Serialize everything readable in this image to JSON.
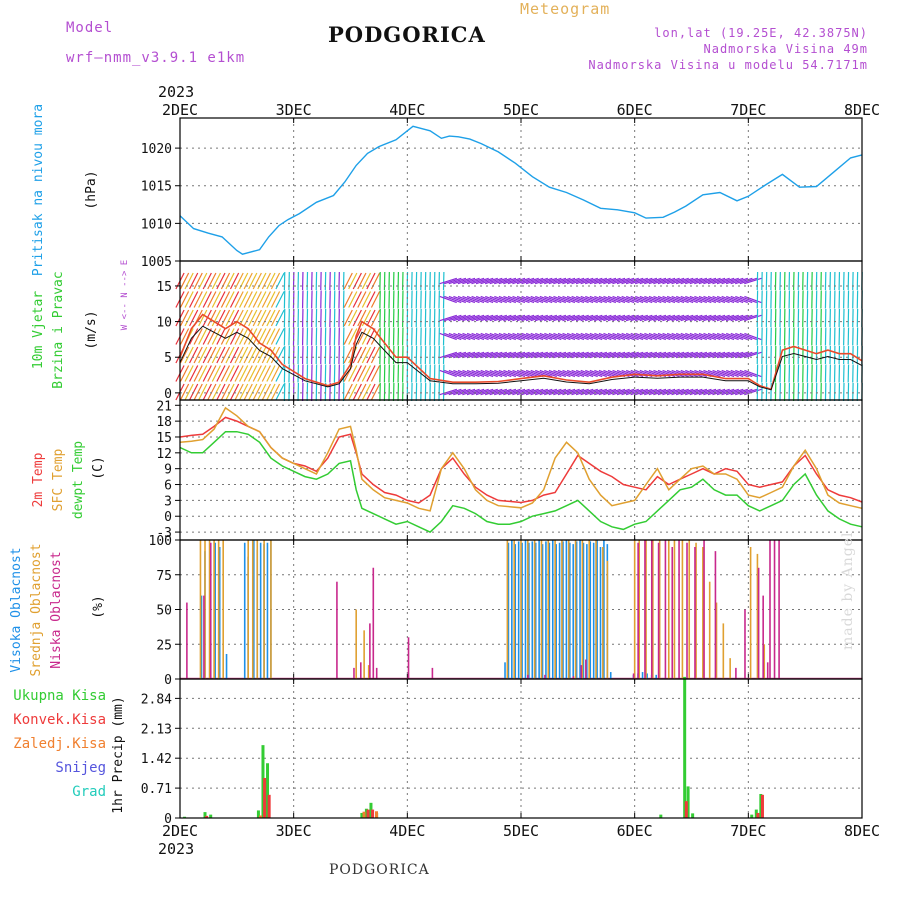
{
  "header": {
    "model_label": "Model",
    "model_name": "wrf—nmm_v3.9.1  e1km",
    "title": "PODGORICA",
    "meteogram_label": "Meteogram",
    "coords": "lon,lat (19.25E, 42.3875N)",
    "elevation": "Nadmorska Visina 49m",
    "model_elevation": "Nadmorska Visina u modelu 54.7171m"
  },
  "footer": {
    "location": "PODGORICA",
    "credit": "made by Angel"
  },
  "colors": {
    "pressure": "#1ea0e8",
    "temp2m": "#ee3b3b",
    "sfc": "#e0a030",
    "dewpt": "#33cc33",
    "high_cloud": "#1e90e8",
    "mid_cloud": "#e0a030",
    "low_cloud": "#c8288c",
    "total_precip": "#33cc33",
    "conv_precip": "#ee3b3b",
    "frz_precip": "#f08030",
    "snow": "#5555dd",
    "hail": "#22ccbb",
    "title_purple": "#b44fd1"
  },
  "chart_data": [
    {
      "type": "line",
      "name": "pressure",
      "ylabel_1": "Pritisak na nivou mora",
      "ylabel_2": "(hPa)",
      "ylim": [
        1005,
        1024
      ],
      "yticks": [
        "1005",
        "1010",
        "1015",
        "1020"
      ],
      "ytick_values": [
        1005,
        1010,
        1015,
        1020
      ],
      "grid": true,
      "time_axis": {
        "start_year": "2023",
        "ticks": [
          "2DEC",
          "3DEC",
          "4DEC",
          "5DEC",
          "6DEC",
          "7DEC",
          "8DEC"
        ],
        "range_days": [
          0,
          6
        ]
      },
      "x": [
        0,
        0.12,
        0.25,
        0.37,
        0.5,
        0.55,
        0.6,
        0.7,
        0.78,
        0.87,
        0.95,
        1.05,
        1.2,
        1.35,
        1.45,
        1.55,
        1.65,
        1.75,
        1.9,
        2.05,
        2.2,
        2.3,
        2.37,
        2.45,
        2.55,
        2.65,
        2.8,
        2.95,
        3.1,
        3.25,
        3.4,
        3.55,
        3.7,
        3.85,
        4.0,
        4.1,
        4.25,
        4.35,
        4.45,
        4.6,
        4.75,
        4.9,
        5.0,
        5.15,
        5.3,
        5.45,
        5.6,
        5.75,
        5.9,
        6.0
      ],
      "values": [
        1011,
        1009.3,
        1008.7,
        1008.2,
        1006.4,
        1005.9,
        1006.1,
        1006.5,
        1008.2,
        1009.7,
        1010.5,
        1011.3,
        1012.8,
        1013.7,
        1015.5,
        1017.7,
        1019.3,
        1020.2,
        1021.1,
        1022.9,
        1022.3,
        1021.3,
        1021.6,
        1021.5,
        1021.2,
        1020.6,
        1019.5,
        1018.0,
        1016.2,
        1014.8,
        1014.1,
        1013.1,
        1012.0,
        1011.8,
        1011.4,
        1010.7,
        1010.8,
        1011.5,
        1012.3,
        1013.8,
        1014.1,
        1013.0,
        1013.6,
        1015.1,
        1016.5,
        1014.8,
        1014.9,
        1016.8,
        1018.7,
        1019.1
      ]
    },
    {
      "type": "line",
      "name": "wind",
      "ylabel_1": "10m Vjetar",
      "ylabel_2": "Brzina i Pravac",
      "ylabel_3": "(m/s)",
      "compass": "W <-- N --> E",
      "ylim": [
        -1,
        18.5
      ],
      "yticks": [
        "0",
        "5",
        "10",
        "15"
      ],
      "ytick_values": [
        0,
        5,
        10,
        15
      ],
      "grid": true,
      "time_axis": {
        "ticks": [
          "2DEC",
          "3DEC",
          "4DEC",
          "5DEC",
          "6DEC",
          "7DEC",
          "8DEC"
        ],
        "range_days": [
          0,
          6
        ]
      },
      "series": [
        {
          "name": "wind speed",
          "x": [
            0,
            0.1,
            0.2,
            0.3,
            0.4,
            0.5,
            0.6,
            0.7,
            0.8,
            0.9,
            1.0,
            1.1,
            1.2,
            1.3,
            1.4,
            1.5,
            1.55,
            1.6,
            1.7,
            1.8,
            1.9,
            2.0,
            2.2,
            2.4,
            2.6,
            2.8,
            3.0,
            3.2,
            3.4,
            3.6,
            3.8,
            4.0,
            4.2,
            4.4,
            4.6,
            4.8,
            5.0,
            5.1,
            5.2,
            5.3,
            5.4,
            5.5,
            5.6,
            5.7,
            5.8,
            5.9,
            6.0
          ],
          "values": [
            5,
            9,
            11,
            10,
            9,
            10,
            9,
            7,
            6,
            4,
            3,
            2,
            1.5,
            1,
            1.5,
            4,
            8,
            10,
            9,
            7,
            5,
            5,
            2,
            1.5,
            1.5,
            1.6,
            2,
            2.4,
            1.8,
            1.5,
            2.2,
            2.6,
            2.4,
            2.6,
            2.6,
            2,
            2,
            1,
            0.5,
            6,
            6.5,
            6,
            5.5,
            6,
            5.5,
            5.5,
            4.5
          ]
        }
      ]
    },
    {
      "type": "line",
      "name": "temperature",
      "ylabel_1": "2m Temp",
      "ylabel_2": "SFC Temp",
      "ylabel_3": "dewpt Temp",
      "ylabel_4": "(C)",
      "ylim": [
        -4.5,
        22
      ],
      "yticks": [
        "-3",
        "0",
        "3",
        "6",
        "9",
        "12",
        "15",
        "18",
        "21"
      ],
      "ytick_values": [
        -3,
        0,
        3,
        6,
        9,
        12,
        15,
        18,
        21
      ],
      "grid": true,
      "time_axis": {
        "ticks": [
          "2DEC",
          "3DEC",
          "4DEC",
          "5DEC",
          "6DEC",
          "7DEC",
          "8DEC"
        ],
        "range_days": [
          0,
          6
        ]
      },
      "x": [
        0,
        0.1,
        0.2,
        0.3,
        0.4,
        0.5,
        0.6,
        0.7,
        0.8,
        0.9,
        1.0,
        1.1,
        1.2,
        1.3,
        1.4,
        1.5,
        1.55,
        1.6,
        1.7,
        1.8,
        1.9,
        2.0,
        2.1,
        2.2,
        2.3,
        2.4,
        2.5,
        2.6,
        2.7,
        2.8,
        2.9,
        3.0,
        3.1,
        3.2,
        3.3,
        3.4,
        3.5,
        3.6,
        3.7,
        3.8,
        3.9,
        4.0,
        4.1,
        4.2,
        4.3,
        4.4,
        4.5,
        4.6,
        4.7,
        4.8,
        4.9,
        5.0,
        5.1,
        5.2,
        5.3,
        5.4,
        5.5,
        5.6,
        5.7,
        5.8,
        5.9,
        6.0
      ],
      "series": [
        {
          "name": "2m Temp",
          "values": [
            15,
            15.3,
            15.5,
            17,
            18.7,
            18,
            17,
            16,
            13,
            11,
            10,
            9.5,
            8.5,
            11,
            15,
            15.5,
            12,
            8,
            6,
            4.5,
            4,
            3,
            2.5,
            4,
            9,
            11,
            8,
            5.5,
            4,
            3,
            2.8,
            2.6,
            3,
            4,
            4.5,
            8,
            11.5,
            10,
            8.5,
            7.5,
            6,
            5.5,
            5,
            7.5,
            6,
            7,
            8,
            9,
            8,
            9,
            8.5,
            6,
            5.5,
            6,
            6.5,
            9.5,
            11.5,
            8,
            5,
            4,
            3.5,
            2.7
          ]
        },
        {
          "name": "SFC Temp",
          "values": [
            14,
            14.2,
            14.5,
            16.5,
            20.5,
            19,
            17,
            16,
            13,
            11,
            10,
            9,
            8,
            12,
            16.5,
            17,
            12.5,
            7,
            5,
            3.5,
            3,
            2.5,
            1.5,
            1,
            9,
            12,
            9,
            5,
            3,
            2,
            1.8,
            1.6,
            2.5,
            5,
            11,
            14,
            12,
            7,
            4,
            2,
            2.5,
            3,
            6,
            9,
            5,
            7,
            9,
            9.5,
            8,
            8,
            7,
            4,
            3.5,
            4.5,
            5.5,
            9.5,
            12.5,
            9,
            4,
            2.5,
            2,
            1.5
          ]
        },
        {
          "name": "dewpt Temp",
          "values": [
            13,
            12,
            12,
            14,
            16,
            16,
            15.5,
            14,
            11,
            9.5,
            8.5,
            7.5,
            7,
            8,
            10,
            10.5,
            5,
            1.5,
            0.5,
            -0.5,
            -1.5,
            -1,
            -2,
            -3,
            -1,
            2,
            1.5,
            0.5,
            -1,
            -1.5,
            -1.5,
            -1,
            0,
            0.5,
            1,
            2,
            3,
            1,
            -1,
            -2,
            -2.5,
            -1.5,
            -1,
            1,
            3,
            5,
            5.5,
            7,
            5,
            4,
            4,
            2,
            1,
            2,
            3,
            6,
            8,
            4,
            1,
            -0.5,
            -1.5,
            -2
          ]
        }
      ]
    },
    {
      "type": "bar",
      "name": "clouds",
      "ylabel_1": "Visoka Oblacnost",
      "ylabel_2": "Srednja Oblacnost",
      "ylabel_3": "Niska Oblacnost",
      "ylabel_4": "(%)",
      "ylim": [
        0,
        100
      ],
      "yticks": [
        "0",
        "25",
        "50",
        "75",
        "100"
      ],
      "ytick_values": [
        0,
        25,
        50,
        75,
        100
      ],
      "grid": true,
      "time_axis": {
        "ticks": [
          "2DEC",
          "3DEC",
          "4DEC",
          "5DEC",
          "6DEC",
          "7DEC",
          "8DEC"
        ],
        "range_days": [
          0,
          6
        ]
      },
      "series": [
        {
          "name": "Visoka Oblacnost",
          "x": [
            0.2,
            0.23,
            0.28,
            0.32,
            0.36,
            0.42,
            0.58,
            0.61,
            0.66,
            0.69,
            0.72,
            0.75,
            0.78,
            0.81,
            2.87,
            2.9,
            2.93,
            2.96,
            2.99,
            3.02,
            3.05,
            3.08,
            3.11,
            3.14,
            3.17,
            3.2,
            3.23,
            3.26,
            3.29,
            3.32,
            3.35,
            3.38,
            3.41,
            3.44,
            3.47,
            3.5,
            3.53,
            3.56,
            3.59,
            3.62,
            3.65,
            3.68,
            3.71,
            3.74,
            3.77,
            3.8,
            4.0,
            4.04,
            4.08,
            4.12,
            4.16,
            4.2
          ],
          "values": [
            60,
            92,
            95,
            98,
            95,
            18,
            98,
            88,
            100,
            93,
            98,
            97,
            98,
            100,
            12,
            98,
            100,
            97,
            99,
            98,
            100,
            98,
            99,
            98,
            100,
            97,
            99,
            98,
            100,
            97,
            98,
            99,
            100,
            98,
            97,
            99,
            100,
            98,
            97,
            99,
            98,
            100,
            95,
            100,
            97,
            5,
            3,
            4,
            5,
            4,
            3,
            3
          ]
        },
        {
          "name": "Srednja Oblacnost",
          "x": [
            0.18,
            0.22,
            0.26,
            0.3,
            0.34,
            0.38,
            0.6,
            0.64,
            0.68,
            0.74,
            0.8,
            1.55,
            1.62,
            1.66,
            2.88,
            2.94,
            3.0,
            3.06,
            3.12,
            3.18,
            3.24,
            3.3,
            3.36,
            3.42,
            3.48,
            3.54,
            3.6,
            3.66,
            3.72,
            3.76,
            4.0,
            4.04,
            4.1,
            4.16,
            4.22,
            4.3,
            4.35,
            4.42,
            4.48,
            4.54,
            4.6,
            4.66,
            4.72,
            4.78,
            4.84,
            5.02,
            5.08,
            5.14
          ],
          "values": [
            100,
            100,
            100,
            100,
            100,
            100,
            100,
            100,
            100,
            100,
            100,
            50,
            35,
            10,
            100,
            100,
            100,
            100,
            100,
            100,
            100,
            100,
            100,
            100,
            100,
            100,
            100,
            100,
            95,
            85,
            100,
            100,
            100,
            100,
            100,
            100,
            100,
            100,
            100,
            98,
            95,
            70,
            55,
            40,
            15,
            95,
            90,
            25
          ]
        },
        {
          "name": "Niska Oblacnost",
          "x": [
            0.05,
            0.2,
            0.26,
            1.37,
            1.52,
            1.58,
            1.66,
            1.69,
            1.72,
            2.0,
            2.21,
            3.05,
            3.2,
            3.45,
            3.52,
            3.56,
            3.98,
            4.02,
            4.08,
            4.14,
            4.2,
            4.26,
            4.32,
            4.38,
            4.45,
            4.52,
            4.6,
            4.7,
            4.88,
            4.96,
            5.08,
            5.12,
            5.16,
            5.18,
            5.22,
            5.26
          ],
          "values": [
            55,
            60,
            98,
            70,
            8,
            12,
            40,
            80,
            8,
            30,
            8,
            3,
            3,
            2,
            10,
            14,
            4,
            98,
            100,
            100,
            98,
            100,
            95,
            100,
            98,
            95,
            100,
            92,
            8,
            50,
            80,
            60,
            12,
            100,
            100,
            100
          ]
        }
      ]
    },
    {
      "type": "bar",
      "name": "precipitation",
      "ylabel_1": "1hr Precip",
      "ylabel_2": "(mm)",
      "ylim": [
        0,
        3.3
      ],
      "yticks": [
        "0",
        "0.71",
        "1.42",
        "2.13",
        "2.84"
      ],
      "ytick_values": [
        0,
        0.71,
        1.42,
        2.13,
        2.84
      ],
      "legend": [
        "Ukupna Kisa",
        "Konvek.Kisa",
        "Zaledj.Kisa",
        "Snijeg",
        "Grad"
      ],
      "grid": true,
      "time_axis": {
        "start_year": "2023",
        "ticks": [
          "2DEC",
          "3DEC",
          "4DEC",
          "5DEC",
          "6DEC",
          "7DEC",
          "8DEC"
        ],
        "range_days": [
          0,
          6
        ]
      },
      "series": [
        {
          "name": "Ukupna Kisa",
          "x": [
            0.04,
            0.22,
            0.27,
            0.69,
            0.73,
            0.77,
            1.6,
            1.64,
            1.68,
            1.73,
            4.23,
            4.44,
            4.47,
            4.51,
            5.03,
            5.07,
            5.11
          ],
          "values": [
            0.03,
            0.14,
            0.08,
            0.18,
            1.73,
            1.3,
            0.12,
            0.22,
            0.36,
            0.12,
            0.08,
            3.35,
            0.75,
            0.11,
            0.08,
            0.2,
            0.57
          ]
        },
        {
          "name": "Konvek.Kisa",
          "x": [
            0.23,
            0.74,
            0.78,
            1.65,
            1.69,
            4.45,
            5.08,
            5.12
          ],
          "values": [
            0.05,
            0.95,
            0.55,
            0.2,
            0.2,
            0.4,
            0.12,
            0.55
          ]
        },
        {
          "name": "Zaledj.Kisa",
          "x": [
            0.7,
            1.61,
            1.72
          ],
          "values": [
            0.06,
            0.15,
            0.16
          ]
        }
      ]
    }
  ]
}
